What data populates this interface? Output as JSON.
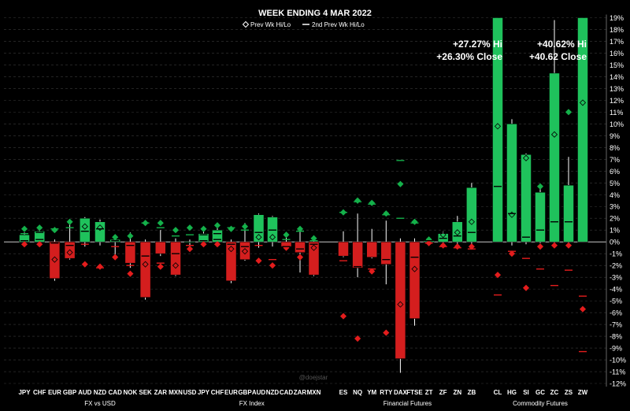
{
  "chart_data": {
    "type": "candlestick",
    "title": "WEEK ENDING 4 MAR 2022",
    "legend": [
      {
        "name": "prev_wk",
        "label": "Prev Wk Hi/Lo",
        "marker": "diamond"
      },
      {
        "name": "prev2_wk",
        "label": "2nd Prev Wk Hi/Lo",
        "marker": "dash"
      }
    ],
    "ylim": [
      -12,
      19
    ],
    "yticks": [
      19,
      18,
      17,
      16,
      15,
      14,
      13,
      12,
      11,
      10,
      9,
      8,
      7,
      6,
      5,
      4,
      3,
      2,
      1,
      0,
      -1,
      -2,
      -3,
      -4,
      -5,
      -6,
      -7,
      -8,
      -9,
      -10,
      -11,
      -12
    ],
    "ytick_labels": [
      "19%",
      "18%",
      "17%",
      "16%",
      "15%",
      "14%",
      "13%",
      "12%",
      "11%",
      "10%",
      "9%",
      "8%",
      "7%",
      "6%",
      "5%",
      "4%",
      "3%",
      "2%",
      "1%",
      "0%",
      "-1%",
      "-2%",
      "-3%",
      "-4%",
      "-5%",
      "-6%",
      "-7%",
      "-8%",
      "-9%",
      "-10%",
      "-11%",
      "-12%"
    ],
    "groups": [
      {
        "name": "FX vs USD",
        "items": [
          {
            "label": "JPY",
            "open": 0,
            "close": 0.6,
            "high": 0.8,
            "low": -0.2,
            "p1h": 1.1,
            "p1l": -0.2,
            "p2h": 0.7,
            "p2l": 0.1
          },
          {
            "label": "CHF",
            "open": 0,
            "close": 0.9,
            "high": 1.2,
            "low": -0.1,
            "p1h": 1.2,
            "p1l": -0.2,
            "p2h": 0.8,
            "p2l": 0.2
          },
          {
            "label": "EUR",
            "open": 0,
            "close": -3.1,
            "high": 0.2,
            "low": -3.3,
            "p1h": 1.0,
            "p1l": -1.5,
            "p2h": 1.1,
            "p2l": -0.1
          },
          {
            "label": "GBP",
            "open": 0,
            "close": -1.4,
            "high": 1.8,
            "low": -1.5,
            "p1h": 1.7,
            "p1l": -0.9,
            "p2h": 1.2,
            "p2l": -0.3
          },
          {
            "label": "AUD",
            "open": 0,
            "close": 2.0,
            "high": 2.1,
            "low": -0.4,
            "p1h": 1.3,
            "p1l": -1.9,
            "p2h": 0.9,
            "p2l": -0.2
          },
          {
            "label": "NZD",
            "open": 0,
            "close": 1.7,
            "high": 1.9,
            "low": -0.3,
            "p1h": 1.2,
            "p1l": -2.1,
            "p2h": 1.1,
            "p2l": -2.2
          },
          {
            "label": "CAD",
            "open": 0,
            "close": 0.2,
            "high": 0.6,
            "low": -1.1,
            "p1h": 0.4,
            "p1l": -1.3,
            "p2h": 0.1,
            "p2l": -0.4
          },
          {
            "label": "NOK",
            "open": 0,
            "close": -1.8,
            "high": 0.8,
            "low": -2.2,
            "p1h": 0.5,
            "p1l": -2.7,
            "p2h": -0.3,
            "p2l": -2.0
          },
          {
            "label": "SEK",
            "open": 0,
            "close": -4.7,
            "high": 0.2,
            "low": -4.9,
            "p1h": 1.6,
            "p1l": -1.9,
            "p2h": 1.6,
            "p2l": -1.2
          },
          {
            "label": "ZAR",
            "open": 0,
            "close": -1.0,
            "high": 1.0,
            "low": -1.2,
            "p1h": 1.6,
            "p1l": -2.1,
            "p2h": 1.2,
            "p2l": -1.8
          },
          {
            "label": "MXN",
            "open": 0,
            "close": -2.8,
            "high": 0.3,
            "low": -2.9,
            "p1h": 1.0,
            "p1l": -2.0,
            "p2h": 0.5,
            "p2l": -1.0
          }
        ]
      },
      {
        "name": "FX Index",
        "items": [
          {
            "label": "USD",
            "open": 0,
            "close": 0,
            "high": 0.2,
            "low": -0.4,
            "p1h": 1.2,
            "p1l": -0.6,
            "p2h": 0.6,
            "p2l": -0.3
          },
          {
            "label": "JPY",
            "open": 0,
            "close": 0.7,
            "high": 0.9,
            "low": -0.1,
            "p1h": 1.1,
            "p1l": -0.2,
            "p2h": 0.6,
            "p2l": 0.1
          },
          {
            "label": "CHF",
            "open": 0,
            "close": 1.0,
            "high": 1.2,
            "low": -0.1,
            "p1h": 1.4,
            "p1l": -0.2,
            "p2h": 0.7,
            "p2l": 0.2
          },
          {
            "label": "EUR",
            "open": 0,
            "close": -3.3,
            "high": 0.2,
            "low": -3.5,
            "p1h": 1.1,
            "p1l": -0.6,
            "p2h": 1.2,
            "p2l": -0.2
          },
          {
            "label": "GBP",
            "open": 0,
            "close": -1.5,
            "high": 1.6,
            "low": -1.6,
            "p1h": 1.3,
            "p1l": -0.8,
            "p2h": 1.0,
            "p2l": -0.4
          },
          {
            "label": "AUD",
            "open": 0,
            "close": 2.3,
            "high": 2.4,
            "low": -0.5,
            "p1h": 0.4,
            "p1l": -1.6,
            "p2h": 0.8,
            "p2l": -0.3
          },
          {
            "label": "NZD",
            "open": 0,
            "close": 2.1,
            "high": 2.2,
            "low": -0.4,
            "p1h": 0.4,
            "p1l": -2.0,
            "p2h": 1.0,
            "p2l": -1.5
          },
          {
            "label": "CAD",
            "open": 0,
            "close": -0.4,
            "high": 0.6,
            "low": -0.7,
            "p1h": 0.6,
            "p1l": -0.5,
            "p2h": 0.2,
            "p2l": -0.4
          },
          {
            "label": "ZAR",
            "open": 0,
            "close": -0.9,
            "high": 1.1,
            "low": -2.6,
            "p1h": 1.1,
            "p1l": -1.3,
            "p2h": 0.9,
            "p2l": -0.6
          },
          {
            "label": "MXN",
            "open": 0,
            "close": -2.8,
            "high": 0.2,
            "low": -2.9,
            "p1h": 0.3,
            "p1l": -0.5,
            "p2h": 0.1,
            "p2l": -0.2
          }
        ]
      },
      {
        "name": "Financial Futures",
        "items": [
          {
            "label": "ES",
            "open": 0,
            "close": -1.2,
            "high": 0.9,
            "low": -1.3,
            "p1h": 2.5,
            "p1l": -6.3,
            "p2h": 2.5,
            "p2l": -1.6
          },
          {
            "label": "NQ",
            "open": 0,
            "close": -2.2,
            "high": 2.4,
            "low": -3.0,
            "p1h": 3.5,
            "p1l": -8.2,
            "p2h": 3.4,
            "p2l": -2.1
          },
          {
            "label": "YM",
            "open": 0,
            "close": -1.3,
            "high": 1.1,
            "low": -1.4,
            "p1h": 3.3,
            "p1l": -2.5,
            "p2h": 3.2,
            "p2l": -2.3
          },
          {
            "label": "RTY",
            "open": 0,
            "close": -1.9,
            "high": 1.8,
            "low": -3.6,
            "p1h": 2.4,
            "p1l": -7.7,
            "p2h": 2.3,
            "p2l": -1.5
          },
          {
            "label": "DAX",
            "open": 0,
            "close": -9.9,
            "high": 0.3,
            "low": -11.1,
            "p1h": 4.9,
            "p1l": -5.3,
            "p2h": 6.9,
            "p2l": 2.0
          },
          {
            "label": "FTSE",
            "open": 0,
            "close": -6.5,
            "high": 0.3,
            "low": -7.1,
            "p1h": 1.7,
            "p1l": -2.3,
            "p2h": 1.6,
            "p2l": -1.3
          },
          {
            "label": "ZT",
            "open": 0,
            "close": 0.1,
            "high": 0.3,
            "low": -0.1,
            "p1h": 0.2,
            "p1l": -0.1,
            "p2h": 0.1,
            "p2l": -0.1
          },
          {
            "label": "ZF",
            "open": 0,
            "close": 0.7,
            "high": 0.9,
            "low": -0.2,
            "p1h": 0.6,
            "p1l": -0.3,
            "p2h": 0.3,
            "p2l": -0.4
          },
          {
            "label": "ZN",
            "open": 0,
            "close": 1.7,
            "high": 2.2,
            "low": -0.4,
            "p1h": 0.8,
            "p1l": -0.4,
            "p2h": 0.5,
            "p2l": -0.5
          },
          {
            "label": "ZB",
            "open": 0,
            "close": 4.6,
            "high": 5.0,
            "low": -0.4,
            "p1h": 1.7,
            "p1l": -0.4,
            "p2h": 0.8,
            "p2l": -0.6
          }
        ]
      },
      {
        "name": "Commodity Futures",
        "items": [
          {
            "label": "CL",
            "open": 0,
            "close": 26.3,
            "high": 27.27,
            "low": 0,
            "p1h": 9.8,
            "p1l": -2.8,
            "p2h": 4.7,
            "p2l": -4.5
          },
          {
            "label": "HG",
            "open": 0,
            "close": 10.0,
            "high": 10.4,
            "low": -0.3,
            "p1h": 2.3,
            "p1l": -1.0,
            "p2h": 2.4,
            "p2l": -0.8
          },
          {
            "label": "SI",
            "open": 0,
            "close": 7.4,
            "high": 7.5,
            "low": -0.2,
            "p1h": 7.1,
            "p1l": -3.9,
            "p2h": 0.4,
            "p2l": -1.4
          },
          {
            "label": "GC",
            "open": 0,
            "close": 4.2,
            "high": 4.9,
            "low": -0.1,
            "p1h": 4.7,
            "p1l": -0.4,
            "p2h": 1.0,
            "p2l": -2.3
          },
          {
            "label": "ZC",
            "open": 0,
            "close": 14.3,
            "high": 18.8,
            "low": -0.1,
            "p1h": 9.1,
            "p1l": -0.3,
            "p2h": 1.7,
            "p2l": -3.7
          },
          {
            "label": "ZS",
            "open": 0,
            "close": 4.8,
            "high": 7.2,
            "low": -0.1,
            "p1h": 11.0,
            "p1l": -0.3,
            "p2h": 1.7,
            "p2l": -2.4
          },
          {
            "label": "ZW",
            "open": 0,
            "close": 40.62,
            "high": 40.62,
            "low": 0,
            "p1h": 11.8,
            "p1l": -5.7,
            "p2h": -4.6,
            "p2l": -9.3
          }
        ]
      }
    ],
    "annotations": [
      {
        "for": "CL",
        "lines": [
          "+27.27% Hi",
          "+26.30% Close"
        ]
      },
      {
        "for": "ZW",
        "lines": [
          "+40.62% Hi",
          "+40.62 Close"
        ]
      }
    ],
    "watermark": "@doejstar",
    "colors": {
      "up": "#1fc25c",
      "down": "#d41e1e",
      "prev_up": "#14b04a",
      "prev_down": "#e31d1d",
      "background": "#000000",
      "grid": "#3a3a3a",
      "text": "#ffffff"
    }
  }
}
